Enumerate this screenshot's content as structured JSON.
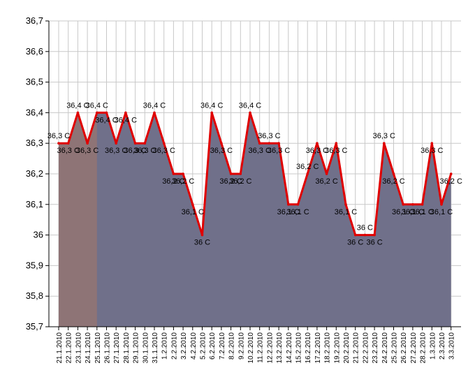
{
  "chart_data": {
    "type": "area",
    "categories": [
      "21.1.2010",
      "22.1.2010",
      "23.1.2010",
      "24.1.2010",
      "25.1.2010",
      "26.1.2010",
      "27.1.2010",
      "28.1.2010",
      "29.1.2010",
      "30.1.2010",
      "31.1.2010",
      "1.2.2010",
      "2.2.2010",
      "3.2.2010",
      "4.2.2010",
      "5.2.2010",
      "6.2.2010",
      "7.2.2010",
      "8.2.2010",
      "9.2.2010",
      "10.2.2010",
      "11.2.2010",
      "12.2.2010",
      "13.2.2010",
      "14.2.2010",
      "15.2.2010",
      "16.2.2010",
      "17.2.2010",
      "18.2.2010",
      "19.2.2010",
      "20.2.2010",
      "21.2.2010",
      "22.2.2010",
      "23.2.2010",
      "24.2.2010",
      "25.2.2010",
      "26.2.2010",
      "27.2.2010",
      "28.2.2010",
      "1.3.2010",
      "2.3.2010",
      "3.3.2010"
    ],
    "values": [
      36.3,
      36.3,
      36.4,
      36.3,
      36.4,
      36.4,
      36.3,
      36.4,
      36.3,
      36.3,
      36.4,
      36.3,
      36.2,
      36.2,
      36.1,
      36.0,
      36.4,
      36.3,
      36.2,
      36.2,
      36.4,
      36.3,
      36.3,
      36.3,
      36.1,
      36.1,
      36.2,
      36.3,
      36.2,
      36.3,
      36.1,
      36.0,
      36.0,
      36.0,
      36.3,
      36.2,
      36.1,
      36.1,
      36.1,
      36.3,
      36.1,
      36.2
    ],
    "data_labels": [
      "36,3 C",
      "36,3 C",
      "36,4 C",
      "36,3 C",
      "36,4 C",
      "36,4 C",
      "36,3 C",
      "36,4 C",
      "36,3 C",
      "36,3 C",
      "36,4 C",
      "36,3 C",
      "36,2 C",
      "36,2 C",
      "36,1 C",
      "36 C",
      "36,4 C",
      "36,3 C",
      "36,2 C",
      "36,2 C",
      "36,4 C",
      "36,3 C",
      "36,3 C",
      "36,3 C",
      "36,1 C",
      "36,1 C",
      "36,2 C",
      "36,3 C",
      "36,2 C",
      "36,3 C",
      "36,1 C",
      "36 C",
      "36 C",
      "36 C",
      "36,3 C",
      "36,2 C",
      "36,1 C",
      "36,1 C",
      "36,1 C",
      "36,3 C",
      "36,1 C",
      "36,2 C"
    ],
    "ytick_labels": [
      "36,7",
      "36,6",
      "36,5",
      "36,4",
      "36,3",
      "36,2",
      "36,1",
      "36",
      "35,9",
      "35,8",
      "35,7"
    ],
    "ylim": [
      35.7,
      36.7
    ],
    "ystep": 0.1,
    "highlight_range": [
      0,
      4
    ],
    "grid": true,
    "title": "",
    "xlabel": "",
    "ylabel": "",
    "colors": {
      "line": "#e00000",
      "area": "#70708a",
      "highlight_area": "#8e7476",
      "grid": "#c8c8c8",
      "axis": "#000000"
    }
  }
}
